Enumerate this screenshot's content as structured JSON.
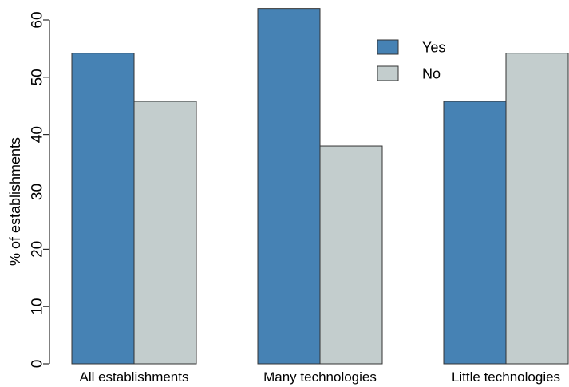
{
  "chart_data": {
    "type": "bar",
    "title": "",
    "xlabel": "",
    "ylabel": "% of establishments",
    "ylim": [
      0,
      60
    ],
    "yticks": [
      0,
      10,
      20,
      30,
      40,
      50,
      60
    ],
    "grid": false,
    "legend_position": "top-right",
    "categories": [
      "All establishments",
      "Many technologies",
      "Little technologies"
    ],
    "series": [
      {
        "name": "Yes",
        "color": "#4682b4",
        "values": [
          54.2,
          62.0,
          45.8
        ]
      },
      {
        "name": "No",
        "color": "#c3cdcd",
        "values": [
          45.8,
          38.0,
          54.2
        ]
      }
    ]
  }
}
